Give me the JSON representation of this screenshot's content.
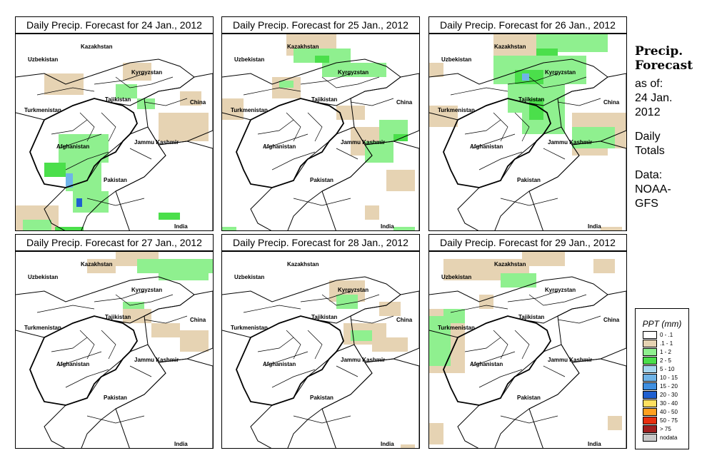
{
  "panels": [
    {
      "title": "Daily Precip. Forecast for  24 Jan., 2012",
      "precip": [
        {
          "level": "light",
          "cells": [
            [
              40,
              55,
              55,
              30
            ],
            [
              0,
              240,
              60,
              40
            ],
            [
              60,
              150,
              50,
              30
            ],
            [
              200,
              110,
              70,
              40
            ],
            [
              150,
              40,
              40,
              25
            ],
            [
              230,
              80,
              30,
              20
            ]
          ]
        },
        {
          "level": "l1",
          "cells": [
            [
              60,
              140,
              70,
              40
            ],
            [
              70,
              180,
              50,
              40
            ],
            [
              80,
              220,
              50,
              30
            ],
            [
              10,
              260,
              40,
              20
            ],
            [
              20,
              280,
              120,
              22
            ],
            [
              140,
              70,
              30,
              20
            ],
            [
              170,
              90,
              25,
              15
            ]
          ]
        },
        {
          "level": "l2",
          "cells": [
            [
              40,
              180,
              30,
              20
            ],
            [
              55,
              270,
              40,
              15
            ],
            [
              200,
              250,
              30,
              10
            ]
          ]
        },
        {
          "level": "l3",
          "cells": [
            [
              70,
              195,
              10,
              20
            ],
            [
              48,
              276,
              30,
              10
            ]
          ]
        },
        {
          "level": "l4",
          "cells": [
            [
              60,
              278,
              18,
              12
            ],
            [
              85,
              230,
              8,
              12
            ]
          ]
        }
      ]
    },
    {
      "title": "Daily Precip. Forecast for  25 Jan., 2012",
      "precip": [
        {
          "level": "light",
          "cells": [
            [
              90,
              0,
              70,
              30
            ],
            [
              0,
              90,
              30,
              30
            ],
            [
              70,
              60,
              40,
              30
            ],
            [
              160,
              100,
              40,
              20
            ],
            [
              200,
              240,
              20,
              20
            ],
            [
              230,
              190,
              40,
              30
            ],
            [
              180,
              130,
              60,
              40
            ]
          ]
        },
        {
          "level": "l1",
          "cells": [
            [
              100,
              20,
              80,
              20
            ],
            [
              140,
              40,
              90,
              20
            ],
            [
              220,
              120,
              40,
              30
            ],
            [
              200,
              150,
              40,
              30
            ],
            [
              80,
              65,
              20,
              10
            ],
            [
              240,
              270,
              30,
              20
            ],
            [
              0,
              270,
              20,
              10
            ]
          ]
        },
        {
          "level": "l2",
          "cells": [
            [
              130,
              30,
              20,
              10
            ],
            [
              240,
              140,
              20,
              10
            ]
          ]
        }
      ]
    },
    {
      "title": "Daily Precip. Forecast for  26 Jan., 2012",
      "precip": [
        {
          "level": "light",
          "cells": [
            [
              90,
              0,
              70,
              40
            ],
            [
              0,
              100,
              40,
              30
            ],
            [
              100,
              30,
              90,
              40
            ],
            [
              240,
              110,
              40,
              50
            ],
            [
              200,
              110,
              50,
              60
            ],
            [
              0,
              40,
              20,
              20
            ],
            [
              240,
              270,
              30,
              10
            ]
          ]
        },
        {
          "level": "l1",
          "cells": [
            [
              90,
              30,
              130,
              40
            ],
            [
              110,
              70,
              80,
              40
            ],
            [
              130,
              110,
              60,
              30
            ],
            [
              200,
              130,
              60,
              30
            ],
            [
              150,
              0,
              100,
              25
            ],
            [
              100,
              60,
              30,
              10
            ]
          ]
        },
        {
          "level": "l2",
          "cells": [
            [
              120,
              50,
              40,
              20
            ],
            [
              140,
              90,
              20,
              30
            ],
            [
              150,
              20,
              30,
              10
            ]
          ]
        },
        {
          "level": "l3",
          "cells": [
            [
              130,
              55,
              10,
              10
            ]
          ]
        }
      ]
    },
    {
      "title": "Daily Precip. Forecast for  27 Jan., 2012",
      "precip": [
        {
          "level": "light",
          "cells": [
            [
              140,
              0,
              60,
              20
            ],
            [
              150,
              80,
              40,
              20
            ],
            [
              230,
              110,
              40,
              30
            ],
            [
              190,
              100,
              40,
              20
            ],
            [
              100,
              10,
              40,
              20
            ]
          ]
        },
        {
          "level": "l1",
          "cells": [
            [
              170,
              10,
              110,
              20
            ],
            [
              200,
              30,
              70,
              10
            ],
            [
              150,
              70,
              30,
              10
            ]
          ]
        }
      ]
    },
    {
      "title": "Daily Precip. Forecast for  28 Jan., 2012",
      "precip": [
        {
          "level": "light",
          "cells": [
            [
              150,
              40,
              50,
              30
            ],
            [
              170,
              100,
              60,
              30
            ],
            [
              220,
              70,
              30,
              20
            ],
            [
              210,
              120,
              50,
              20
            ],
            [
              250,
              270,
              20,
              10
            ]
          ]
        },
        {
          "level": "l1",
          "cells": [
            [
              160,
              60,
              30,
              20
            ],
            [
              180,
              110,
              30,
              15
            ]
          ]
        }
      ]
    },
    {
      "title": "Daily Precip. Forecast for  29 Jan., 2012",
      "precip": [
        {
          "level": "light",
          "cells": [
            [
              0,
              80,
              50,
              90
            ],
            [
              20,
              10,
              120,
              30
            ],
            [
              130,
              0,
              60,
              20
            ],
            [
              230,
              10,
              30,
              20
            ],
            [
              70,
              60,
              20,
              20
            ],
            [
              250,
              230,
              20,
              20
            ],
            [
              0,
              240,
              20,
              30
            ]
          ]
        },
        {
          "level": "l1",
          "cells": [
            [
              0,
              90,
              30,
              70
            ],
            [
              20,
              80,
              30,
              20
            ],
            [
              100,
              30,
              50,
              20
            ]
          ]
        }
      ]
    }
  ],
  "map_labels": [
    "Uzbekistan",
    "Kazakhstan",
    "Kyrgyzstan",
    "Tajikistan",
    "China",
    "Turkmenistan",
    "Afghanistan",
    "Jammu Kashmir",
    "Pakistan",
    "India"
  ],
  "side": {
    "title_line1": "Precip.",
    "title_line2": "Forecast",
    "asof_line1": "as of:",
    "asof_line2": "24 Jan.",
    "asof_line3": "2012",
    "totals_line1": "Daily",
    "totals_line2": "Totals",
    "data_line1": "Data:",
    "data_line2": "NOAA-",
    "data_line3": "GFS"
  },
  "legend": {
    "title": "PPT (mm)",
    "items": [
      {
        "label": "0 - .1",
        "color": "#ffffff"
      },
      {
        "label": ".1 - 1",
        "color": "#e6d3b3"
      },
      {
        "label": "1 - 2",
        "color": "#8ff08f"
      },
      {
        "label": "2 - 5",
        "color": "#4bdf4b"
      },
      {
        "label": "5 - 10",
        "color": "#a7d7f0"
      },
      {
        "label": "10 - 15",
        "color": "#6fb4e8"
      },
      {
        "label": "15 - 20",
        "color": "#3f8fe0"
      },
      {
        "label": "20 - 30",
        "color": "#1f5fd0"
      },
      {
        "label": "30 - 40",
        "color": "#ffe060"
      },
      {
        "label": "40 - 50",
        "color": "#ffa020"
      },
      {
        "label": "50 - 75",
        "color": "#e83010"
      },
      {
        "label": "> 75",
        "color": "#a02020"
      },
      {
        "label": "nodata",
        "color": "#c8c8c8"
      }
    ]
  }
}
